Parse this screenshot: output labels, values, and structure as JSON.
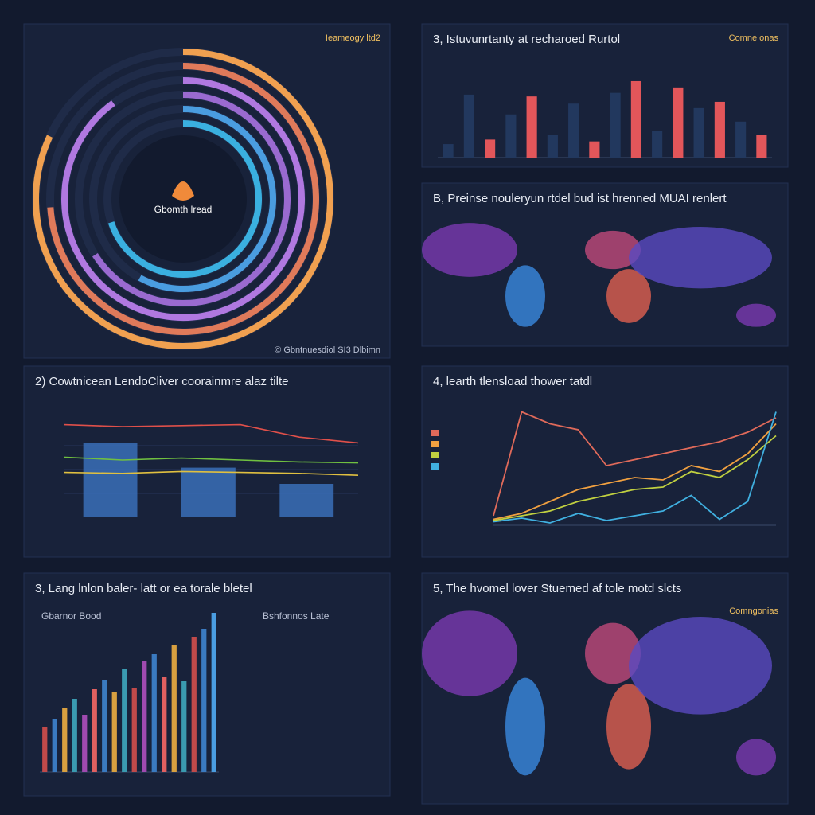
{
  "chart_data": [
    {
      "type": "radial",
      "title": "Ieameogy ltd2",
      "center_label": "Gbomth lread",
      "footer": "© Gbntnuesdiol SI3 Dlbimn",
      "values": [
        82,
        74,
        90,
        66,
        58,
        70
      ],
      "colors": [
        "#f0a050",
        "#e07a5a",
        "#b078e0",
        "#9a6ad0",
        "#4a9de0",
        "#3ab0e0"
      ],
      "ylim": [
        0,
        100
      ]
    },
    {
      "type": "bar",
      "title": "3, Istuvunrtanty at recharoed Rurtol",
      "legend": "Comne onas",
      "values": [
        15,
        70,
        20,
        48,
        68,
        25,
        60,
        18,
        72,
        85,
        30,
        78,
        55,
        62,
        40,
        25
      ],
      "colors": [
        "#22385e",
        "#22385e",
        "#e2565a",
        "#22385e",
        "#e2565a",
        "#22385e",
        "#22385e",
        "#e2565a",
        "#22385e",
        "#e2565a",
        "#22385e",
        "#e2565a",
        "#22385e",
        "#e2565a",
        "#22385e",
        "#e2565a"
      ],
      "ylim": [
        0,
        100
      ]
    },
    {
      "type": "map",
      "title": "B, Preinse nouleryun rtdel bud ist hrenned MUAI renlert"
    },
    {
      "type": "combo",
      "title": "2) Cowtnicean LendoCliver coorainmre alaz tilte",
      "bar_values": [
        78,
        52,
        35
      ],
      "bar_color": "#3a6fb8",
      "ylim": [
        0,
        100
      ],
      "series": [
        {
          "color": "#e0504a",
          "values": [
            97,
            95,
            96,
            97,
            84,
            78
          ]
        },
        {
          "color": "#70c040",
          "values": [
            63,
            60,
            62,
            60,
            58,
            57
          ]
        },
        {
          "color": "#e0c040",
          "values": [
            47,
            46,
            48,
            47,
            46,
            44
          ]
        }
      ]
    },
    {
      "type": "line",
      "title": "4, learth tlensload thower tatdl",
      "ylim": [
        0,
        100
      ],
      "series": [
        {
          "color": "#e06a5a",
          "values": [
            8,
            95,
            85,
            80,
            50,
            55,
            60,
            65,
            70,
            78,
            90
          ]
        },
        {
          "color": "#f0a040",
          "values": [
            5,
            10,
            20,
            30,
            35,
            40,
            38,
            50,
            45,
            60,
            85
          ]
        },
        {
          "color": "#c0d040",
          "values": [
            4,
            8,
            12,
            20,
            25,
            30,
            32,
            45,
            40,
            55,
            75
          ]
        },
        {
          "color": "#40b0e0",
          "values": [
            3,
            6,
            2,
            10,
            4,
            8,
            12,
            25,
            5,
            20,
            95
          ]
        }
      ]
    },
    {
      "type": "bar",
      "title": "3, Lang lnlon baler- latt or ea torale bletel",
      "subtitle": "Gbarnor Bood",
      "side_label": "Bshfonnos Late",
      "values": [
        28,
        33,
        40,
        46,
        36,
        52,
        58,
        50,
        65,
        53,
        70,
        74,
        60,
        80,
        57,
        85,
        90,
        100
      ],
      "colors": [
        "#c04a4a",
        "#3a7ac0",
        "#d8a040",
        "#3a9ab0",
        "#a04ab0",
        "#e06060",
        "#3a7ac0",
        "#d8a040",
        "#3a9ab0",
        "#c04a4a",
        "#a04ab0",
        "#3a7ac0",
        "#e06060",
        "#d8a040",
        "#3a9ab0",
        "#c04a4a",
        "#3a7ac0",
        "#4a9de0"
      ],
      "ylim": [
        0,
        100
      ]
    },
    {
      "type": "map",
      "title": "5, The hvomel lover Stuemed af tole motd slcts",
      "legend": "Comngonias"
    }
  ]
}
